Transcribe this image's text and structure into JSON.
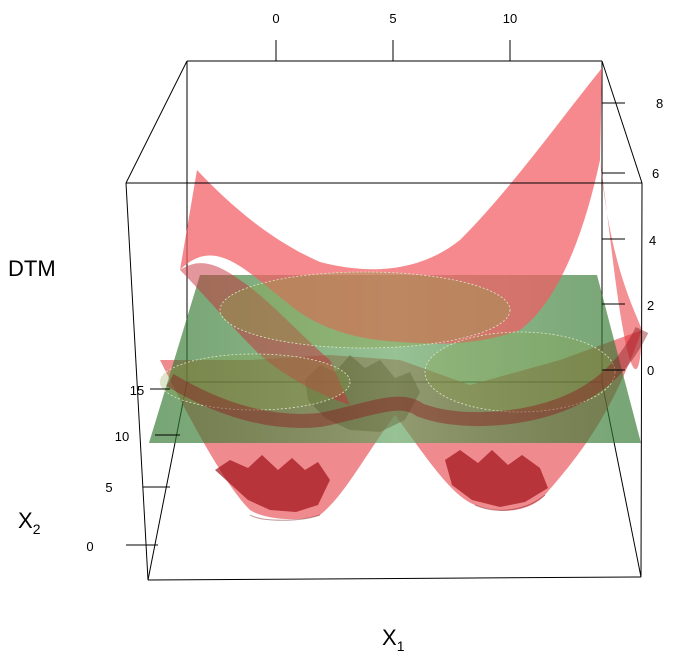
{
  "chart_data": {
    "type": "surface3d",
    "axes": {
      "x": {
        "label": "X",
        "subscript": "1",
        "ticks": [
          0,
          5,
          10
        ]
      },
      "y": {
        "label": "X",
        "subscript": "2",
        "ticks": [
          0,
          5,
          10,
          15
        ]
      },
      "z": {
        "label": "DTM",
        "ticks": [
          0,
          2,
          4,
          6,
          8
        ]
      }
    },
    "series": [
      {
        "kind": "surface",
        "color": "#e8343c"
      },
      {
        "kind": "plane",
        "color": "#3a8a35"
      }
    ],
    "grid": false
  }
}
